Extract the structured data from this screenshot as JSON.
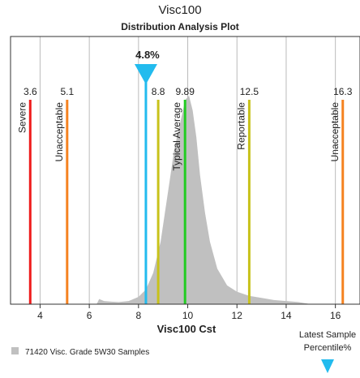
{
  "chart_data": {
    "type": "area",
    "title": "Visc100",
    "subtitle": "Distribution Analysis Plot",
    "xlabel": "Visc100 Cst",
    "ylabel": "",
    "xlim": [
      2.8,
      17.0
    ],
    "xticks": [
      4,
      6,
      8,
      10,
      12,
      14,
      16
    ],
    "grid": true,
    "legend": {
      "placement": "bottom-left",
      "label": "71420 Visc. Grade 5W30 Samples",
      "color": "#c0c0c0"
    },
    "distribution": {
      "x": [
        6.3,
        6.4,
        6.6,
        6.9,
        7.2,
        7.6,
        8.0,
        8.3,
        8.6,
        8.9,
        9.1,
        9.3,
        9.45,
        9.6,
        9.75,
        9.9,
        10.05,
        10.2,
        10.35,
        10.5,
        10.7,
        10.9,
        11.2,
        11.6,
        12.0,
        12.5,
        13.0,
        13.5,
        14.0,
        14.5,
        15.0
      ],
      "y": [
        0.0,
        0.025,
        0.015,
        0.012,
        0.01,
        0.015,
        0.035,
        0.07,
        0.15,
        0.3,
        0.46,
        0.62,
        0.74,
        0.82,
        0.9,
        0.98,
        1.0,
        0.93,
        0.8,
        0.62,
        0.44,
        0.3,
        0.17,
        0.09,
        0.06,
        0.04,
        0.03,
        0.02,
        0.015,
        0.01,
        0.0
      ],
      "color": "#c0c0c0"
    },
    "limit_lines": [
      {
        "value": 3.6,
        "value_label": "3.6",
        "label": "Severe",
        "color": "#ee1c1c"
      },
      {
        "value": 5.1,
        "value_label": "5.1",
        "label": "Unacceptable",
        "color": "#f58220"
      },
      {
        "value": 8.8,
        "value_label": "8.8",
        "label": "",
        "color": "#c8c21a"
      },
      {
        "value": 9.89,
        "value_label": "9.89",
        "label": "Typical Average",
        "color": "#22cc22"
      },
      {
        "value": 12.5,
        "value_label": "12.5",
        "label": "Reportable",
        "color": "#c8c21a"
      },
      {
        "value": 16.3,
        "value_label": "16.3",
        "label": "Unacceptable",
        "color": "#f58220"
      }
    ],
    "latest_sample": {
      "value": 8.3,
      "percentile_label": "4.8%",
      "color": "#22bbee",
      "caption_line1": "Latest Sample",
      "caption_line2": "Percentile%"
    }
  }
}
